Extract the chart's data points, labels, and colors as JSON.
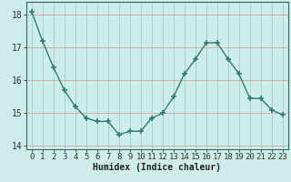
{
  "x": [
    0,
    1,
    2,
    3,
    4,
    5,
    6,
    7,
    8,
    9,
    10,
    11,
    12,
    13,
    14,
    15,
    16,
    17,
    18,
    19,
    20,
    21,
    22,
    23
  ],
  "y": [
    18.1,
    17.2,
    16.4,
    15.7,
    15.2,
    14.85,
    14.75,
    14.75,
    14.35,
    14.45,
    14.45,
    14.85,
    15.0,
    15.5,
    16.2,
    16.65,
    17.15,
    17.15,
    16.65,
    16.2,
    15.45,
    15.45,
    15.1,
    14.95
  ],
  "line_color": "#2e7d72",
  "marker": "+",
  "markersize": 4,
  "linewidth": 1.0,
  "xlabel": "Humidex (Indice chaleur)",
  "ylim": [
    13.9,
    18.4
  ],
  "xlim": [
    -0.5,
    23.5
  ],
  "yticks": [
    14,
    15,
    16,
    17,
    18
  ],
  "xticks": [
    0,
    1,
    2,
    3,
    4,
    5,
    6,
    7,
    8,
    9,
    10,
    11,
    12,
    13,
    14,
    15,
    16,
    17,
    18,
    19,
    20,
    21,
    22,
    23
  ],
  "bg_color": "#ceecea",
  "hgrid_color": "#d4a0a0",
  "vgrid_color": "#9ecece",
  "axis_color": "#336666",
  "xlabel_fontsize": 7,
  "tick_fontsize": 6.5
}
